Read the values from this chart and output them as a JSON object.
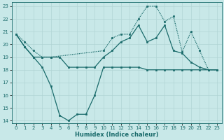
{
  "xlabel": "Humidex (Indice chaleur)",
  "xlim": [
    -0.5,
    23.5
  ],
  "ylim": [
    13.8,
    23.3
  ],
  "xticks": [
    0,
    1,
    2,
    3,
    4,
    5,
    6,
    7,
    8,
    9,
    10,
    11,
    12,
    13,
    14,
    15,
    16,
    17,
    18,
    19,
    20,
    21,
    22,
    23
  ],
  "yticks": [
    14,
    15,
    16,
    17,
    18,
    19,
    20,
    21,
    22,
    23
  ],
  "bg_color": "#c8e8e8",
  "grid_color": "#b0d4d4",
  "line_color": "#1a6b6b",
  "line1_x": [
    0,
    1,
    2,
    3,
    4,
    5,
    6,
    7,
    8,
    9,
    10,
    11,
    12,
    13,
    14,
    15,
    16,
    17,
    18,
    19,
    20,
    21,
    22,
    23
  ],
  "line1_y": [
    20.8,
    19.8,
    19.0,
    18.2,
    16.7,
    14.4,
    14.0,
    14.5,
    14.5,
    16.0,
    18.2,
    18.2,
    18.2,
    18.2,
    18.2,
    18.0,
    18.0,
    18.0,
    18.0,
    18.0,
    18.0,
    18.0,
    18.0,
    18.0
  ],
  "line2_x": [
    0,
    1,
    2,
    3,
    4,
    5,
    6,
    7,
    8,
    9,
    10,
    11,
    12,
    13,
    14,
    15,
    16,
    17,
    18,
    19,
    20,
    21,
    22,
    23
  ],
  "line2_y": [
    20.8,
    19.8,
    19.0,
    19.0,
    19.0,
    19.0,
    18.2,
    18.2,
    18.2,
    18.2,
    19.0,
    19.5,
    20.2,
    20.5,
    21.5,
    20.2,
    20.5,
    21.5,
    19.5,
    19.3,
    18.6,
    18.2,
    18.0,
    18.0
  ],
  "line3_x": [
    0,
    1,
    2,
    3,
    4,
    10,
    11,
    12,
    13,
    14,
    15,
    16,
    17,
    18,
    19,
    20,
    21,
    22,
    23
  ],
  "line3_y": [
    20.8,
    20.2,
    19.5,
    19.0,
    19.0,
    19.5,
    20.5,
    20.8,
    20.8,
    22.0,
    23.0,
    23.0,
    21.8,
    22.2,
    19.4,
    21.0,
    19.5,
    18.0,
    18.0
  ]
}
